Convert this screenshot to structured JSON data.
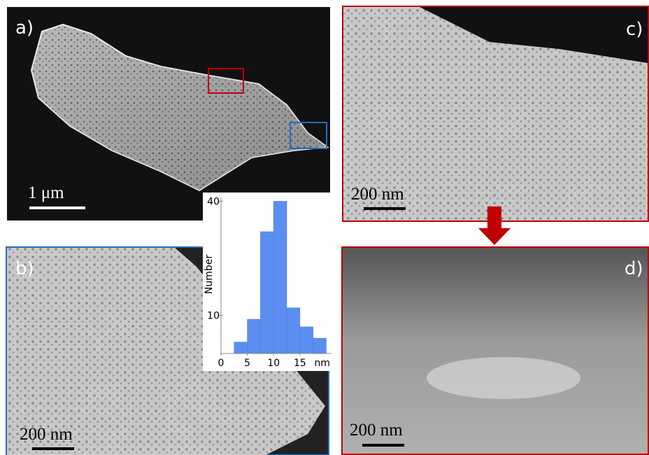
{
  "panels": [
    {
      "label": "a)",
      "scale_bar": "1 μm"
    },
    {
      "label": "b)",
      "scale_bar": "200 nm"
    },
    {
      "label": "c)",
      "scale_bar": "200 nm"
    },
    {
      "label": "d)",
      "scale_bar": "200 nm"
    }
  ],
  "chart_data": {
    "type": "histogram",
    "ylabel": "Number",
    "x_unit": "nm",
    "bins": [
      2.5,
      5,
      7.5,
      10,
      12.5,
      15,
      17.5,
      20
    ],
    "values": [
      3,
      9,
      32,
      40,
      12,
      7,
      4
    ],
    "color": "#5b8ef0",
    "xlim": [
      0,
      21
    ],
    "ylim": [
      0,
      41
    ],
    "xticks": [
      0,
      5,
      10,
      15
    ],
    "yticks": [
      10,
      40
    ]
  }
}
